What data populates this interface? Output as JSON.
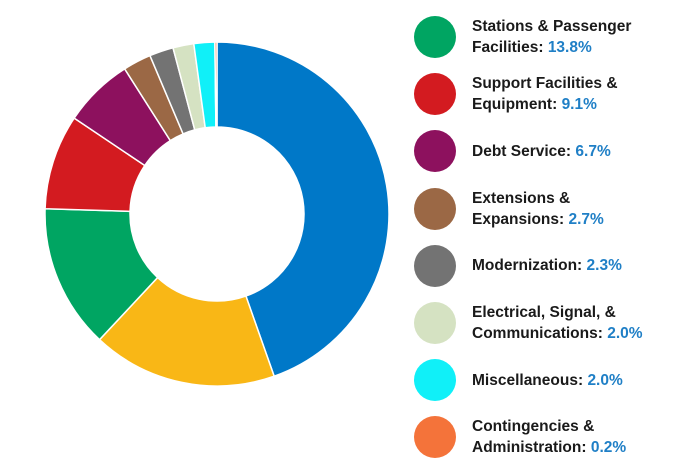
{
  "chart_data": {
    "type": "pie",
    "donut": true,
    "legend_position": "right",
    "unit": "%",
    "series": [
      {
        "label": "",
        "value": 45.5,
        "color": "#0078c8"
      },
      {
        "label": "",
        "value": 17.7,
        "color": "#f9b716"
      },
      {
        "label": "Stations & Passenger Facilities",
        "value": 13.8,
        "display": "13.8%",
        "color": "#00a562"
      },
      {
        "label": "Support Facilities & Equipment",
        "value": 9.1,
        "display": "9.1%",
        "color": "#d31b20"
      },
      {
        "label": "Debt Service",
        "value": 6.7,
        "display": "6.7%",
        "color": "#8d115e"
      },
      {
        "label": "Extensions & Expansions",
        "value": 2.7,
        "display": "2.7%",
        "color": "#9b6845"
      },
      {
        "label": "Modernization",
        "value": 2.3,
        "display": "2.3%",
        "color": "#737373"
      },
      {
        "label": "Electrical, Signal, & Communications",
        "value": 2.0,
        "display": "2.0%",
        "color": "#d5e2c2"
      },
      {
        "label": "Miscellaneous",
        "value": 2.0,
        "display": "2.0%",
        "color": "#10f0f8"
      },
      {
        "label": "Contingencies & Administration",
        "value": 0.2,
        "display": "0.2%",
        "color": "#f4733a"
      }
    ]
  },
  "legend": {
    "items": [
      {
        "line1": "Stations & Passenger",
        "line2": "Facilities:",
        "value": "13.8%",
        "color": "#00a562"
      },
      {
        "line1": "Support Facilities &",
        "line2": "Equipment:",
        "value": "9.1%",
        "color": "#d31b20"
      },
      {
        "line1": "Debt Service:",
        "line2": "",
        "value": "6.7%",
        "color": "#8d115e"
      },
      {
        "line1": "Extensions &",
        "line2": "Expansions:",
        "value": "2.7%",
        "color": "#9b6845"
      },
      {
        "line1": "Modernization:",
        "line2": "",
        "value": "2.3%",
        "color": "#737373"
      },
      {
        "line1": "Electrical, Signal, &",
        "line2": "Communications:",
        "value": "2.0%",
        "color": "#d5e2c2"
      },
      {
        "line1": "Miscellaneous:",
        "line2": "",
        "value": "2.0%",
        "color": "#10f0f8"
      },
      {
        "line1": "Contingencies &",
        "line2": "Administration:",
        "value": "0.2%",
        "color": "#f4733a"
      }
    ]
  }
}
